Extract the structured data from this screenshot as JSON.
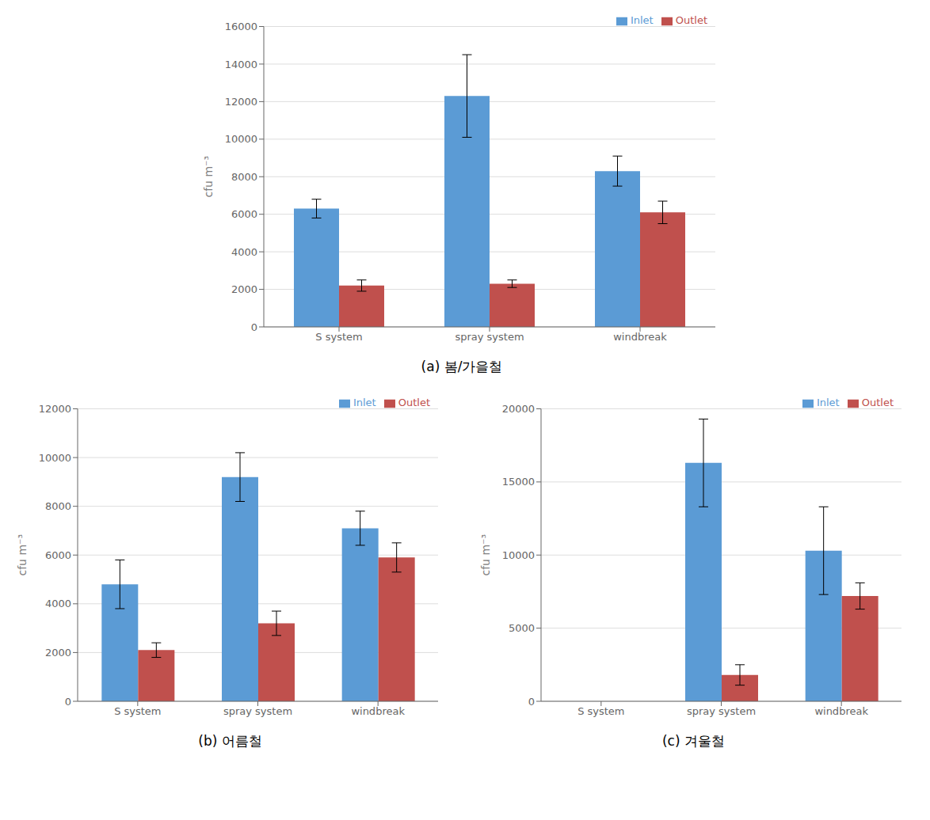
{
  "chart_data": [
    {
      "type": "bar",
      "title": "(a)  봄/가을철",
      "categories": [
        "S system",
        "spray system",
        "windbreak"
      ],
      "series": [
        {
          "name": "Inlet",
          "color": "#5B9BD5",
          "values": [
            6300,
            12300,
            8300
          ],
          "errors": [
            500,
            2200,
            800
          ]
        },
        {
          "name": "Outlet",
          "color": "#C0504D",
          "values": [
            2200,
            2300,
            6100
          ],
          "errors": [
            300,
            200,
            600
          ]
        }
      ],
      "y_label": "cfu m⁻³",
      "ylim": [
        0,
        16000
      ],
      "yticks": [
        0,
        2000,
        4000,
        6000,
        8000,
        10000,
        12000,
        14000,
        16000
      ],
      "grid": true,
      "legend": "upper right"
    },
    {
      "type": "bar",
      "title": "(b)  어름철",
      "categories": [
        "S system",
        "spray system",
        "windbreak"
      ],
      "series": [
        {
          "name": "Inlet",
          "color": "#5B9BD5",
          "values": [
            4800,
            9200,
            7100
          ],
          "errors": [
            1000,
            1000,
            700
          ]
        },
        {
          "name": "Outlet",
          "color": "#C0504D",
          "values": [
            2100,
            3200,
            5900
          ],
          "errors": [
            300,
            500,
            600
          ]
        }
      ],
      "y_label": "cfu m⁻³",
      "ylim": [
        0,
        12000
      ],
      "yticks": [
        0,
        2000,
        4000,
        6000,
        8000,
        10000,
        12000
      ],
      "grid": true,
      "legend": "upper right"
    },
    {
      "type": "bar",
      "title": "(c)  겨울철",
      "categories": [
        "S system",
        "spray system",
        "windbreak"
      ],
      "series": [
        {
          "name": "Inlet",
          "color": "#5B9BD5",
          "values": [
            0,
            16300,
            10300
          ],
          "errors": [
            0,
            3000,
            3000
          ]
        },
        {
          "name": "Outlet",
          "color": "#C0504D",
          "values": [
            0,
            1800,
            7200
          ],
          "errors": [
            0,
            700,
            900
          ]
        }
      ],
      "y_label": "cfu m⁻³",
      "ylim": [
        0,
        20000
      ],
      "yticks": [
        0,
        5000,
        10000,
        15000,
        20000
      ],
      "grid": true,
      "legend": "upper right"
    }
  ]
}
